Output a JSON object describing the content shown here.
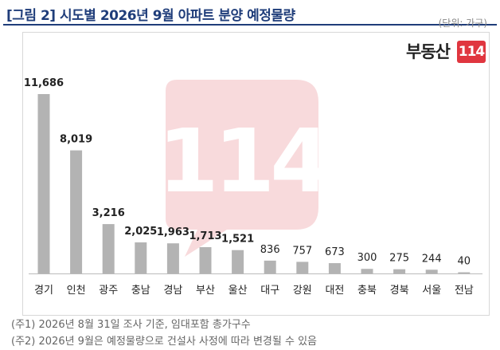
{
  "title": "[그림 2] 시도별 2026년 9월 아파트 분양 예정물량",
  "unit": "(단위: 가구)",
  "logo": {
    "text": "부동산",
    "badge": "114"
  },
  "watermark": "114",
  "notes": [
    "(주1) 2026년 8월 31일 조사 기준, 임대포함 총가구수",
    "(주2) 2026년 9월은 예정물량으로 건설사 사정에 따라 변경될 수 있음"
  ],
  "colors": {
    "bar": "#b3b3b3",
    "title": "#1f3d7a",
    "watermark": "#f7d4d6",
    "badge": "#e0363f"
  },
  "chart_data": {
    "type": "bar",
    "categories": [
      "경기",
      "인천",
      "광주",
      "충남",
      "경남",
      "부산",
      "울산",
      "대구",
      "강원",
      "대전",
      "충북",
      "경북",
      "서울",
      "전남"
    ],
    "values": [
      11686,
      8019,
      3216,
      2025,
      1963,
      1713,
      1521,
      836,
      757,
      673,
      300,
      275,
      244,
      40
    ],
    "value_labels": [
      "11,686",
      "8,019",
      "3,216",
      "2,025",
      "1,963",
      "1,713",
      "1,521",
      "836",
      "757",
      "673",
      "300",
      "275",
      "244",
      "40"
    ],
    "bold_labels_count": 7,
    "ylim": [
      0,
      11686
    ],
    "grid": false
  }
}
